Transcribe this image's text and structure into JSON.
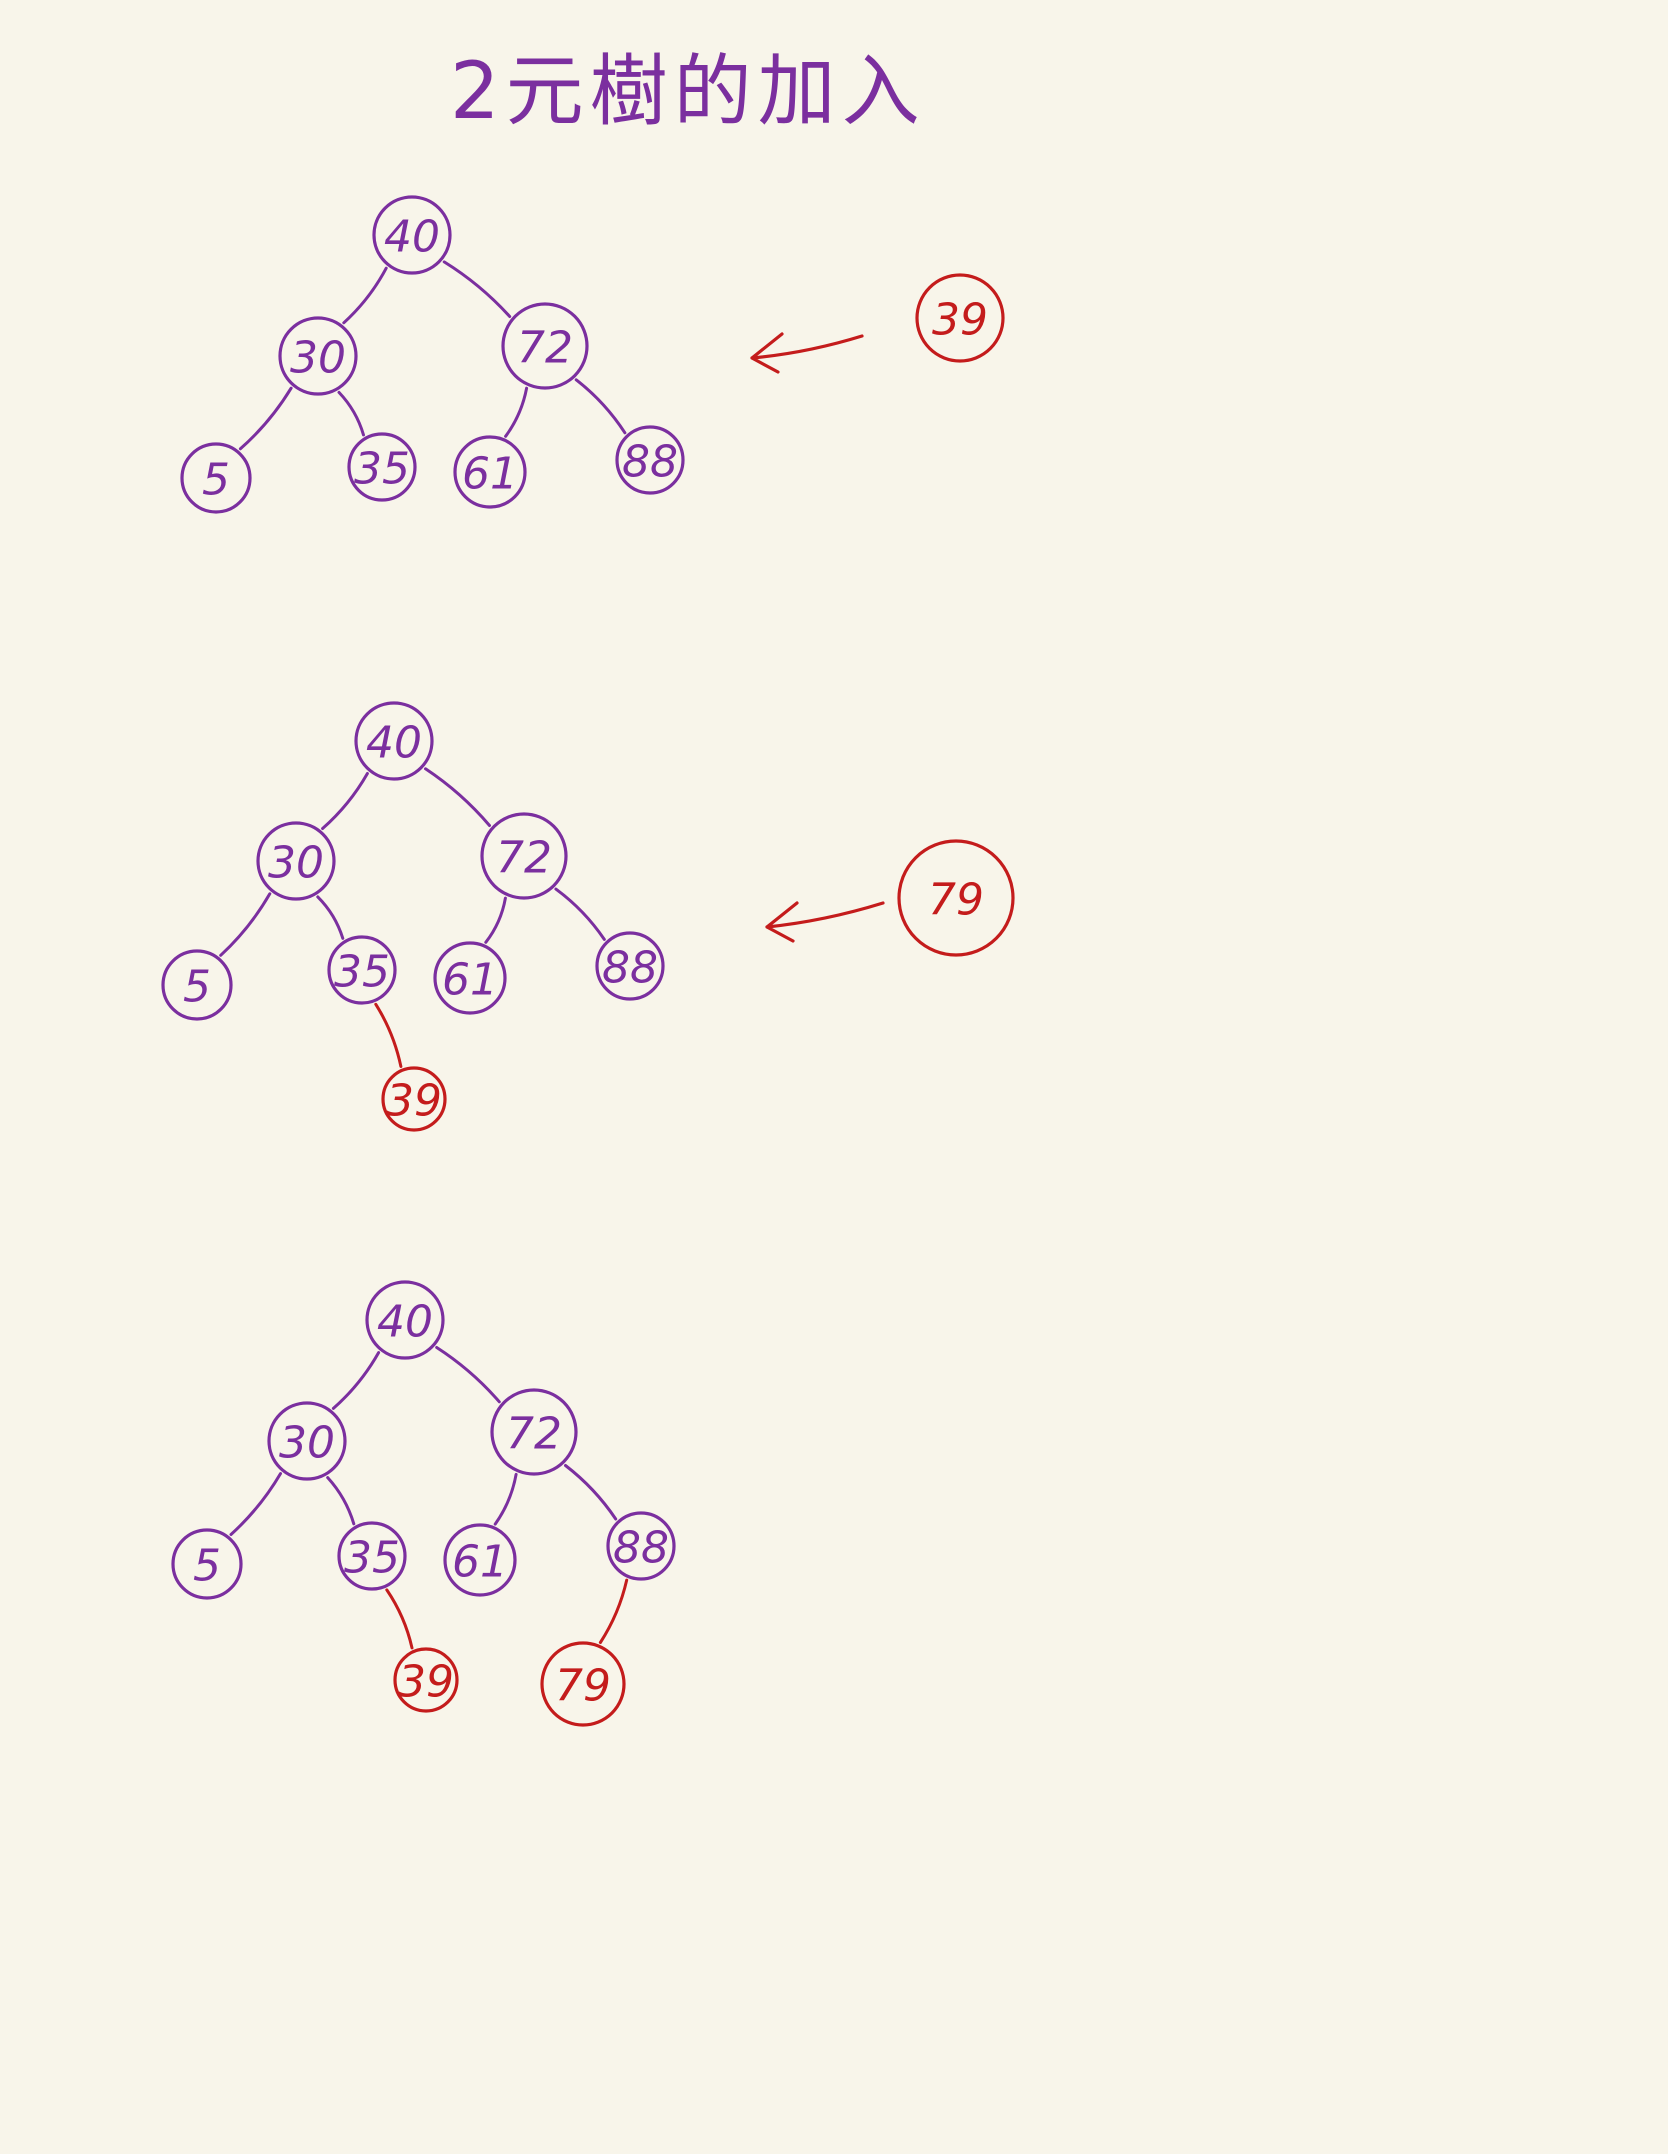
{
  "title": "2元樹的加入",
  "colors": {
    "background": "#f8f5ea",
    "existing": "#7b2f9f",
    "inserted": "#c41c1c"
  },
  "diagrams": [
    {
      "name": "step-1",
      "nodes": [
        {
          "id": "n40",
          "label": "40",
          "status": "existing"
        },
        {
          "id": "n30",
          "label": "30",
          "status": "existing"
        },
        {
          "id": "n72",
          "label": "72",
          "status": "existing"
        },
        {
          "id": "n5",
          "label": "5",
          "status": "existing"
        },
        {
          "id": "n35",
          "label": "35",
          "status": "existing"
        },
        {
          "id": "n61",
          "label": "61",
          "status": "existing"
        },
        {
          "id": "n88",
          "label": "88",
          "status": "existing"
        }
      ],
      "edges": [
        {
          "from": "n40",
          "to": "n30"
        },
        {
          "from": "n40",
          "to": "n72"
        },
        {
          "from": "n30",
          "to": "n5"
        },
        {
          "from": "n30",
          "to": "n35"
        },
        {
          "from": "n72",
          "to": "n61"
        },
        {
          "from": "n72",
          "to": "n88"
        }
      ],
      "incoming": {
        "label": "39",
        "icon": "left-arrow-icon"
      }
    },
    {
      "name": "step-2",
      "nodes": [
        {
          "id": "n40",
          "label": "40",
          "status": "existing"
        },
        {
          "id": "n30",
          "label": "30",
          "status": "existing"
        },
        {
          "id": "n72",
          "label": "72",
          "status": "existing"
        },
        {
          "id": "n5",
          "label": "5",
          "status": "existing"
        },
        {
          "id": "n35",
          "label": "35",
          "status": "existing"
        },
        {
          "id": "n61",
          "label": "61",
          "status": "existing"
        },
        {
          "id": "n88",
          "label": "88",
          "status": "existing"
        },
        {
          "id": "n39",
          "label": "39",
          "status": "inserted"
        }
      ],
      "edges": [
        {
          "from": "n40",
          "to": "n30"
        },
        {
          "from": "n40",
          "to": "n72"
        },
        {
          "from": "n30",
          "to": "n5"
        },
        {
          "from": "n30",
          "to": "n35"
        },
        {
          "from": "n72",
          "to": "n61"
        },
        {
          "from": "n72",
          "to": "n88"
        },
        {
          "from": "n35",
          "to": "n39"
        }
      ],
      "incoming": {
        "label": "79",
        "icon": "left-arrow-icon"
      }
    },
    {
      "name": "step-3",
      "nodes": [
        {
          "id": "n40",
          "label": "40",
          "status": "existing"
        },
        {
          "id": "n30",
          "label": "30",
          "status": "existing"
        },
        {
          "id": "n72",
          "label": "72",
          "status": "existing"
        },
        {
          "id": "n5",
          "label": "5",
          "status": "existing"
        },
        {
          "id": "n35",
          "label": "35",
          "status": "existing"
        },
        {
          "id": "n61",
          "label": "61",
          "status": "existing"
        },
        {
          "id": "n88",
          "label": "88",
          "status": "existing"
        },
        {
          "id": "n39",
          "label": "39",
          "status": "inserted"
        },
        {
          "id": "n79",
          "label": "79",
          "status": "inserted"
        }
      ],
      "edges": [
        {
          "from": "n40",
          "to": "n30"
        },
        {
          "from": "n40",
          "to": "n72"
        },
        {
          "from": "n30",
          "to": "n5"
        },
        {
          "from": "n30",
          "to": "n35"
        },
        {
          "from": "n72",
          "to": "n61"
        },
        {
          "from": "n72",
          "to": "n88"
        },
        {
          "from": "n35",
          "to": "n39"
        },
        {
          "from": "n88",
          "to": "n79"
        }
      ],
      "incoming": null
    }
  ]
}
